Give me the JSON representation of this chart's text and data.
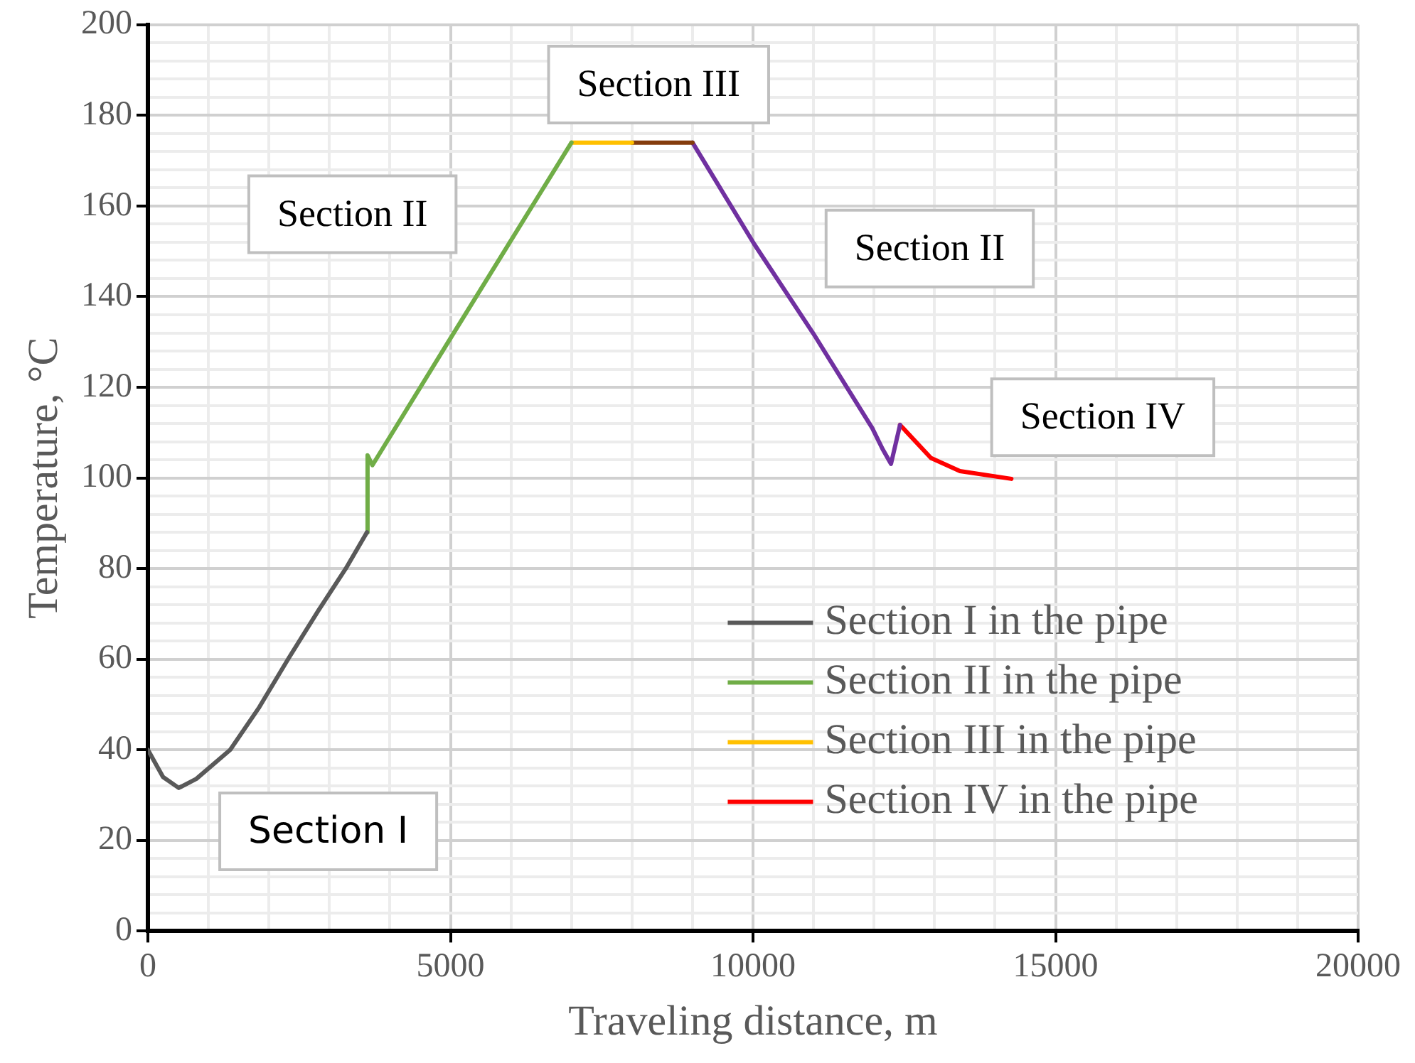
{
  "chart_data": {
    "type": "line",
    "xlabel": "Traveling distance, m",
    "ylabel": "Temperature, °C",
    "xlim": [
      0,
      20000
    ],
    "ylim": [
      0,
      200
    ],
    "xticks": [
      0,
      {
        "value": 1000,
        "label": null
      },
      {
        "value": 2000,
        "label": null
      },
      {
        "value": 3000,
        "label": null
      },
      {
        "value": 4000,
        "label": null
      },
      5000,
      {
        "value": 6000,
        "label": null
      },
      {
        "value": 7000,
        "label": null
      },
      {
        "value": 8000,
        "label": null
      },
      {
        "value": 9000,
        "label": null
      },
      10000,
      {
        "value": 11000,
        "label": null
      },
      {
        "value": 12000,
        "label": null
      },
      {
        "value": 13000,
        "label": null
      },
      {
        "value": 14000,
        "label": null
      },
      15000,
      {
        "value": 16000,
        "label": null
      },
      {
        "value": 17000,
        "label": null
      },
      {
        "value": 18000,
        "label": null
      },
      {
        "value": 19000,
        "label": null
      },
      20000
    ],
    "yticks": [
      0,
      {
        "value": 4,
        "label": null
      },
      {
        "value": 8,
        "label": null
      },
      {
        "value": 12,
        "label": null
      },
      {
        "value": 16,
        "label": null
      },
      20,
      {
        "value": 24,
        "label": null
      },
      {
        "value": 28,
        "label": null
      },
      {
        "value": 32,
        "label": null
      },
      {
        "value": 36,
        "label": null
      },
      40,
      {
        "value": 44,
        "label": null
      },
      {
        "value": 48,
        "label": null
      },
      {
        "value": 52,
        "label": null
      },
      {
        "value": 56,
        "label": null
      },
      60,
      {
        "value": 64,
        "label": null
      },
      {
        "value": 68,
        "label": null
      },
      {
        "value": 72,
        "label": null
      },
      {
        "value": 76,
        "label": null
      },
      80,
      {
        "value": 84,
        "label": null
      },
      {
        "value": 88,
        "label": null
      },
      {
        "value": 92,
        "label": null
      },
      {
        "value": 96,
        "label": null
      },
      100,
      {
        "value": 104,
        "label": null
      },
      {
        "value": 108,
        "label": null
      },
      {
        "value": 112,
        "label": null
      },
      {
        "value": 116,
        "label": null
      },
      120,
      {
        "value": 124,
        "label": null
      },
      {
        "value": 128,
        "label": null
      },
      {
        "value": 132,
        "label": null
      },
      {
        "value": 136,
        "label": null
      },
      140,
      {
        "value": 144,
        "label": null
      },
      {
        "value": 148,
        "label": null
      },
      {
        "value": 152,
        "label": null
      },
      {
        "value": 156,
        "label": null
      },
      160,
      {
        "value": 164,
        "label": null
      },
      {
        "value": 168,
        "label": null
      },
      {
        "value": 172,
        "label": null
      },
      {
        "value": 176,
        "label": null
      },
      180,
      {
        "value": 184,
        "label": null
      },
      {
        "value": 188,
        "label": null
      },
      {
        "value": 192,
        "label": null
      },
      {
        "value": 196,
        "label": null
      },
      200
    ],
    "grid": true,
    "legend": "bottom right",
    "marker": "none",
    "line_style": "solid",
    "series": [
      {
        "name": "Section I in the pipe",
        "color": "#595959",
        "x": [
          0,
          250,
          510,
          800,
          1360,
          1840,
          2330,
          2820,
          3270,
          3620
        ],
        "values": [
          40,
          34,
          31.6,
          33.6,
          40,
          49.4,
          60.3,
          70.8,
          80,
          88
        ]
      },
      {
        "name": "Section II in the pipe",
        "color": "#70ad47",
        "x": [
          3620,
          3630,
          3710,
          5000,
          6000,
          7000
        ],
        "values": [
          88,
          105,
          102.8,
          130.8,
          152.4,
          174
        ]
      },
      {
        "name": "Section III in the pipe",
        "color": "#ffc000",
        "x": [
          7000,
          8000
        ],
        "values": [
          174,
          174
        ]
      },
      {
        "color": "#843c0c",
        "x": [
          8000,
          9000
        ],
        "values": [
          174,
          174
        ]
      },
      {
        "color": "#7030a0",
        "x": [
          9000,
          10020,
          11000,
          11970,
          12140,
          12280,
          12430
        ],
        "values": [
          174,
          151.6,
          131.8,
          111,
          106.4,
          103.1,
          111.7
        ]
      },
      {
        "name": "Section IV in the pipe",
        "color": "#ff0000",
        "x": [
          12430,
          12940,
          13420,
          14270
        ],
        "values": [
          111.7,
          104.4,
          101.5,
          99.8
        ]
      }
    ],
    "annotations": [
      "Section I",
      "Section II",
      "Section III",
      "Section II",
      "Section IV"
    ]
  }
}
